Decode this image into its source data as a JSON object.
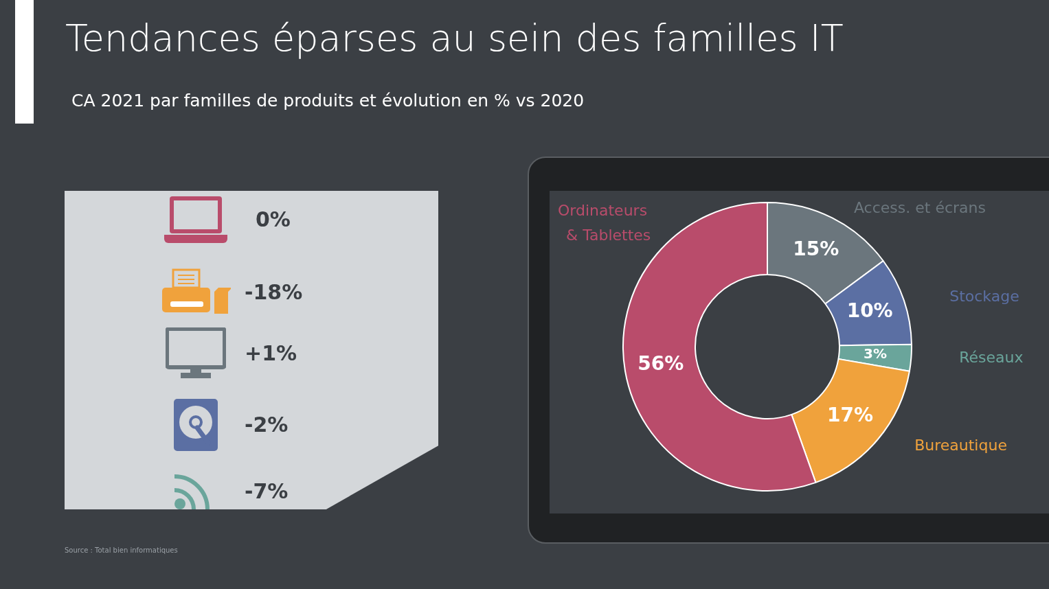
{
  "chart_data": [
    {
      "type": "donut",
      "title": "Tendances éparses au sein des familles IT",
      "subtitle": "CA 2021 par familles de produits et évolution en % vs 2020",
      "categories": [
        "Access. et écrans",
        "Stockage",
        "Réseaux",
        "Bureautique",
        "Ordinateurs & Tablettes"
      ],
      "values": [
        15,
        10,
        3,
        17,
        56
      ],
      "colors": [
        "#6b767d",
        "#5b6fa3",
        "#6aa59b",
        "#f0a23c",
        "#b94c6b"
      ],
      "value_labels": [
        "15%",
        "10%",
        "3%",
        "17%",
        "56%"
      ],
      "annotations": [
        "Source : Total bien informatiques"
      ],
      "legend": false
    },
    {
      "type": "other",
      "annotations": [
        "0%",
        "-18%",
        "+1%",
        "-2%",
        "-7%"
      ]
    }
  ]
}
